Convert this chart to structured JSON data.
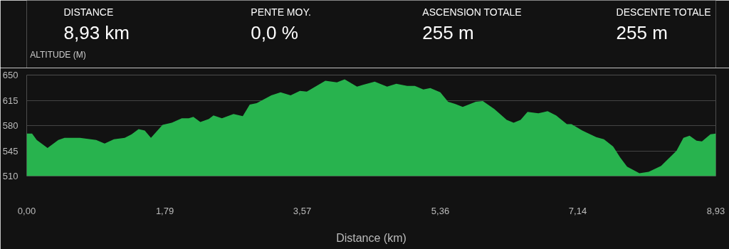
{
  "chart_data": {
    "type": "area",
    "ylabel": "ALTITUDE (M)",
    "xlabel": "Distance (km)",
    "annotations": [
      "DISTANCE",
      "8,93 km",
      "PENTE MOY.",
      "0,0 %",
      "ASCENSION TOTALE",
      "255 m",
      "DESCENTE TOTALE",
      "255 m"
    ],
    "x": [
      0,
      0.07,
      0.13,
      0.27,
      0.41,
      0.49,
      0.69,
      0.9,
      1.01,
      1.13,
      1.27,
      1.36,
      1.45,
      1.53,
      1.61,
      1.76,
      1.88,
      2.01,
      2.1,
      2.16,
      2.25,
      2.36,
      2.42,
      2.53,
      2.68,
      2.8,
      2.89,
      2.98,
      3.17,
      3.29,
      3.42,
      3.54,
      3.63,
      3.87,
      4.02,
      4.12,
      4.28,
      4.51,
      4.67,
      4.79,
      4.93,
      5.03,
      5.14,
      5.23,
      5.36,
      5.46,
      5.55,
      5.65,
      5.82,
      5.91,
      6.06,
      6.22,
      6.31,
      6.4,
      6.49,
      6.63,
      6.75,
      6.86,
      7.0,
      7.06,
      7.2,
      7.38,
      7.48,
      7.6,
      7.69,
      7.78,
      7.94,
      8.06,
      8.22,
      8.42,
      8.51,
      8.59,
      8.68,
      8.75,
      8.86,
      8.93
    ],
    "series": [
      {
        "color": "#28b34e",
        "values": [
          569,
          569,
          560,
          549,
          560,
          563,
          563,
          560,
          555,
          561,
          563,
          568,
          575,
          573,
          563,
          581,
          584,
          590,
          590,
          592,
          585,
          589,
          594,
          590,
          596,
          593,
          609,
          611,
          622,
          626,
          622,
          628,
          627,
          642,
          640,
          644,
          634,
          641,
          634,
          638,
          635,
          635,
          630,
          632,
          626,
          613,
          610,
          606,
          613,
          614,
          603,
          588,
          584,
          588,
          599,
          597,
          600,
          594,
          582,
          582,
          573,
          564,
          561,
          551,
          536,
          523,
          514,
          516,
          524,
          545,
          563,
          566,
          559,
          558,
          568,
          569
        ]
      }
    ],
    "xlim": [
      0,
      8.93
    ],
    "xticks": [
      {
        "value": 0,
        "label": "0,00"
      },
      {
        "value": 1.79,
        "label": "1,79"
      },
      {
        "value": 3.57,
        "label": "3,57"
      },
      {
        "value": 5.36,
        "label": "5,36"
      },
      {
        "value": 7.14,
        "label": "7,14"
      },
      {
        "value": 8.93,
        "label": "8,93"
      }
    ],
    "ylim": [
      510,
      650
    ],
    "yticks": [
      510,
      545,
      580,
      615,
      650
    ],
    "grid": "y"
  }
}
